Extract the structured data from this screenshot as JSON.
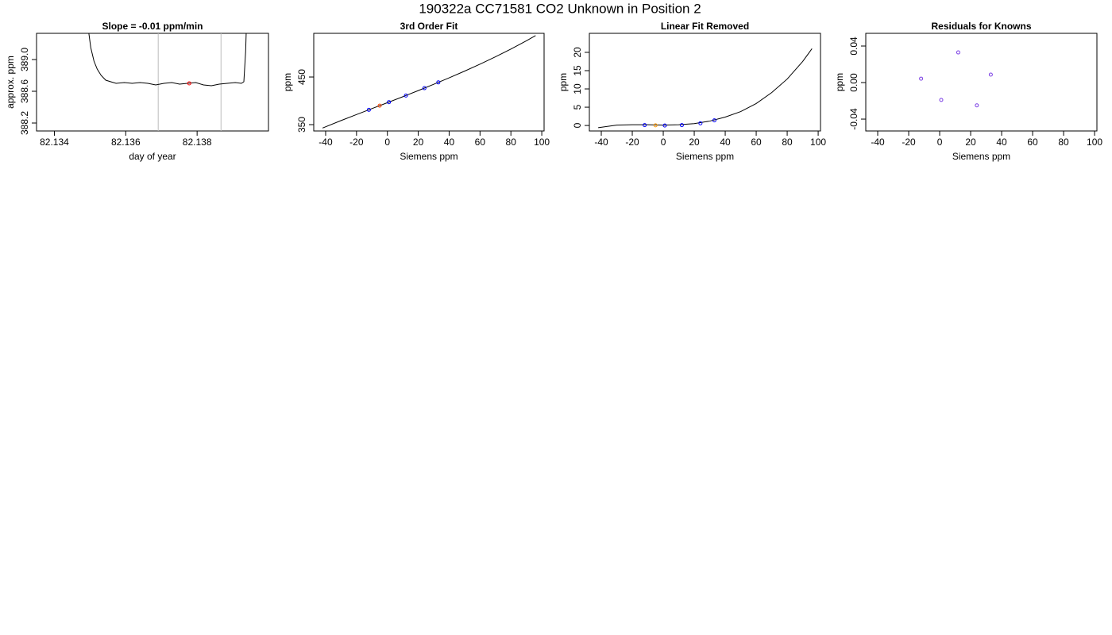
{
  "title": "190322a     CC71581   CO2 Unknown in Position  2",
  "chart_data": [
    {
      "type": "line",
      "title": "Slope =  -0.01  ppm/min",
      "xlabel": "day of year",
      "ylabel": "approx. ppm",
      "xlim": [
        82.1335,
        82.14
      ],
      "ylim": [
        388.1,
        389.33
      ],
      "xticks": [
        82.134,
        82.136,
        82.138
      ],
      "yticks": [
        388.2,
        388.6,
        {
          "value": 389,
          "label": "389.0"
        }
      ],
      "line": {
        "color": "#000000",
        "x": [
          82.13496,
          82.13502,
          82.13511,
          82.1352,
          82.13531,
          82.13544,
          82.13558,
          82.13573,
          82.13596,
          82.13618,
          82.1364,
          82.13662,
          82.13684,
          82.13707,
          82.13729,
          82.13751,
          82.13773,
          82.13796,
          82.13818,
          82.1384,
          82.13862,
          82.13884,
          82.13907,
          82.13924,
          82.13931,
          82.13936,
          82.13938
        ],
        "y": [
          389.35,
          389.15,
          388.98,
          388.88,
          388.8,
          388.74,
          388.72,
          388.7,
          388.71,
          388.7,
          388.71,
          388.7,
          388.68,
          388.7,
          388.71,
          388.69,
          388.7,
          388.71,
          388.68,
          388.67,
          388.69,
          388.7,
          388.71,
          388.7,
          388.72,
          389.1,
          389.4
        ]
      },
      "points": {
        "x": [
          82.13778
        ],
        "y": [
          388.7
        ],
        "colors": [
          "#ff0000"
        ]
      },
      "vlines": {
        "x": [
          82.13691,
          82.13867
        ],
        "color": "#bbbbbb"
      }
    },
    {
      "type": "line",
      "title": "3rd Order Fit",
      "xlabel": "Siemens ppm",
      "ylabel": "ppm",
      "xlim": [
        -47.7,
        101.5
      ],
      "ylim": [
        336.7,
        541.7
      ],
      "xticks": [
        -40,
        -20,
        0,
        20,
        40,
        60,
        80,
        100
      ],
      "yticks": [
        350,
        450
      ],
      "line": {
        "color": "#000000",
        "x": [
          -42,
          -30,
          -20,
          -10,
          0,
          10,
          20,
          30,
          40,
          50,
          60,
          70,
          80,
          90,
          96
        ],
        "y": [
          342.9,
          358.6,
          371.2,
          383.7,
          396.1,
          408.6,
          421.5,
          434.7,
          448.3,
          462.3,
          477,
          492.5,
          508.7,
          526,
          537
        ]
      },
      "points": {
        "x": [
          -12,
          -5,
          1,
          12,
          24,
          33
        ],
        "y": [
          381.1,
          389.8,
          397.2,
          411.1,
          426.6,
          438.7
        ],
        "colors": [
          "#0000ff",
          "#ff4400",
          "#0000ff",
          "#0000ff",
          "#0000ff",
          "#0000ff"
        ]
      }
    },
    {
      "type": "line",
      "title": "Linear Fit Removed",
      "xlabel": "Siemens ppm",
      "ylabel": "ppm",
      "xlim": [
        -47.7,
        101.5
      ],
      "ylim": [
        -1.5,
        25.2
      ],
      "xticks": [
        -40,
        -20,
        0,
        20,
        40,
        60,
        80,
        100
      ],
      "yticks": [
        0,
        5,
        10,
        15,
        20
      ],
      "line": {
        "color": "#000000",
        "x": [
          -42,
          -30,
          -20,
          -10,
          0,
          10,
          20,
          30,
          40,
          50,
          60,
          70,
          80,
          90,
          96
        ],
        "y": [
          -0.6,
          0.1,
          0.2,
          0.2,
          0.1,
          0.2,
          0.5,
          1.2,
          2.3,
          3.8,
          6,
          9,
          12.7,
          17.5,
          21
        ]
      },
      "points": {
        "x": [
          -12,
          -5,
          1,
          12,
          24,
          33
        ],
        "y": [
          0.1,
          0.05,
          0,
          0.1,
          0.6,
          1.4
        ],
        "colors": [
          "#0000ff",
          "#ff9900",
          "#0000ff",
          "#0000ff",
          "#0000ff",
          "#0000ff"
        ]
      }
    },
    {
      "type": "scatter",
      "title": "Residuals for Knowns",
      "xlabel": "Siemens ppm",
      "ylabel": "ppm",
      "xlim": [
        -47.7,
        101.5
      ],
      "ylim": [
        -0.053,
        0.0539
      ],
      "xticks": [
        -40,
        -20,
        0,
        20,
        40,
        60,
        80,
        100
      ],
      "yticks": [
        -0.04,
        {
          "value": 0,
          "label": "0.00"
        },
        0.04
      ],
      "points": {
        "x": [
          -12,
          1,
          12,
          24,
          33
        ],
        "y": [
          0.0043,
          -0.019,
          0.033,
          -0.025,
          0.0087
        ],
        "colors": [
          "#7b3fe4",
          "#7b3fe4",
          "#7b3fe4",
          "#7b3fe4",
          "#7b3fe4"
        ]
      }
    }
  ]
}
